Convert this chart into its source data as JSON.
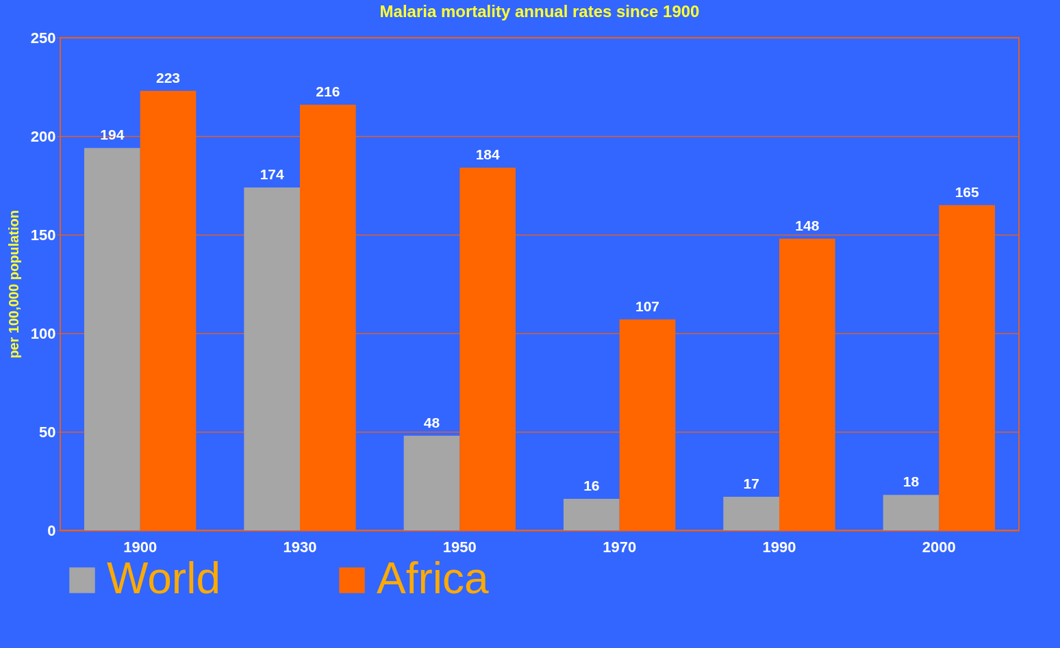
{
  "chart_data": {
    "type": "bar",
    "title": "Malaria mortality annual rates since 1900",
    "ylabel": "per 100,000 population",
    "categories": [
      "1900",
      "1930",
      "1950",
      "1970",
      "1990",
      "2000"
    ],
    "series": [
      {
        "name": "World",
        "color": "#a6a6a6",
        "values": [
          194,
          174,
          48,
          16,
          17,
          18
        ]
      },
      {
        "name": "Africa",
        "color": "#ff6600",
        "values": [
          223,
          216,
          184,
          107,
          148,
          165
        ]
      }
    ],
    "ylim": [
      0,
      250
    ],
    "yticks": [
      0,
      50,
      100,
      150,
      200,
      250
    ],
    "grid": "y",
    "legend": "bottom",
    "data_labels": true
  }
}
